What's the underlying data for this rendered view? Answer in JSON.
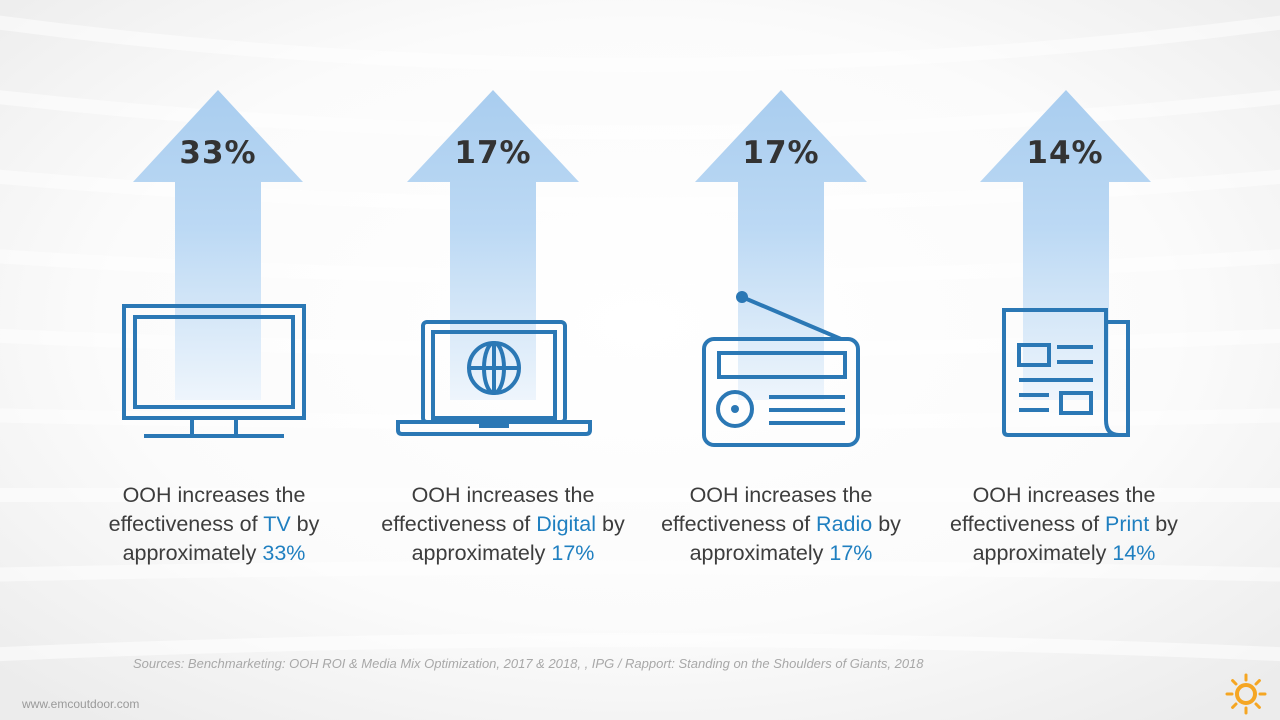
{
  "colors": {
    "accent": "#1f7fc0",
    "icon_stroke": "#2b78b5",
    "arrow_light": "#a9cdef",
    "text": "#3d3d3d",
    "logo": "#f5a623"
  },
  "items": [
    {
      "percent": "33%",
      "icon": "tv-icon",
      "text_before": "OOH increases the effectiveness of ",
      "medium": "TV",
      "text_middle": " by approximately ",
      "value": "33%"
    },
    {
      "percent": "17%",
      "icon": "laptop-globe-icon",
      "text_before": "OOH increases the effectiveness of ",
      "medium": "Digital",
      "text_middle": " by approximately ",
      "value": "17%"
    },
    {
      "percent": "17%",
      "icon": "radio-icon",
      "text_before": "OOH increases the effectiveness of ",
      "medium": "Radio",
      "text_middle": " by approximately ",
      "value": "17%"
    },
    {
      "percent": "14%",
      "icon": "newspaper-icon",
      "text_before": "OOH increases the effectiveness of ",
      "medium": "Print",
      "text_middle": " by approximately ",
      "value": "14%"
    }
  ],
  "footer": {
    "sources": "Sources: Benchmarketing: OOH ROI & Media Mix Optimization, 2017 & 2018, , IPG / Rapport: Standing on the Shoulders of Giants, 2018",
    "website": "www.emcoutdoor.com"
  }
}
